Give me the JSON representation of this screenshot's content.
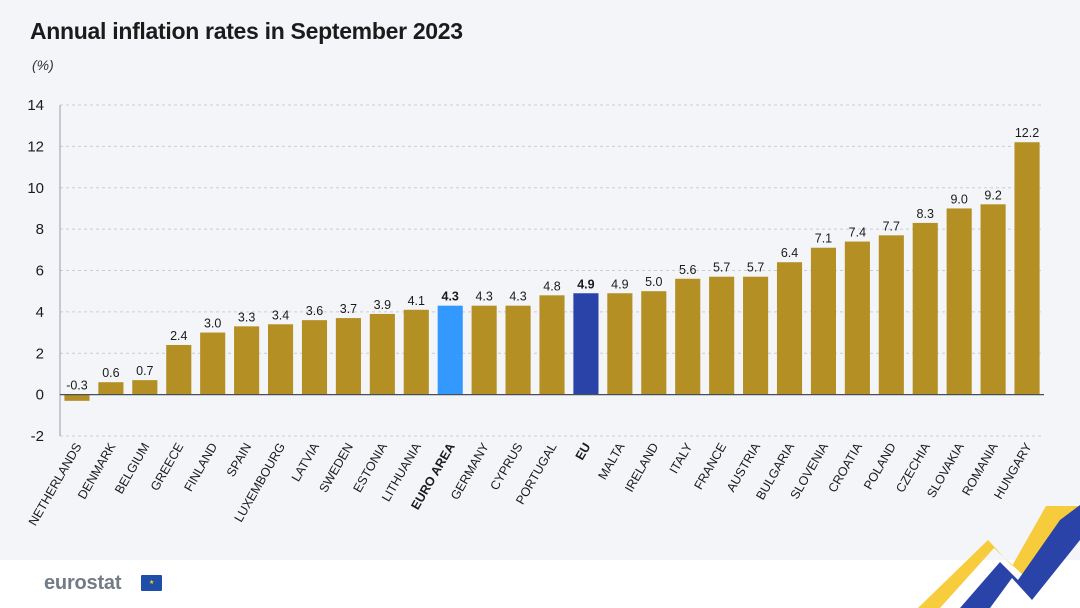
{
  "header": {
    "title": "Annual inflation rates in September 2023",
    "unit": "(%)"
  },
  "footer": {
    "logo_text": "eurostat",
    "flag_stars": "★"
  },
  "colors": {
    "default": "#b38f24",
    "euro_area": "#3399ff",
    "eu": "#2a43a8",
    "grid": "#c9ced6",
    "text": "#1b1b1b"
  },
  "chart_data": {
    "type": "bar",
    "title": "Annual inflation rates in September 2023",
    "ylabel": "(%)",
    "xlabel": "",
    "ylim": [
      -2,
      14
    ],
    "yticks": [
      -2,
      0,
      2,
      4,
      6,
      8,
      10,
      12,
      14
    ],
    "grid": true,
    "categories": [
      "NETHERLANDS",
      "DENMARK",
      "BELGIUM",
      "GREECE",
      "FINLAND",
      "SPAIN",
      "LUXEMBOURG",
      "LATVIA",
      "SWEDEN",
      "ESTONIA",
      "LITHUANIA",
      "EURO AREA",
      "GERMANY",
      "CYPRUS",
      "PORTUGAL",
      "EU",
      "MALTA",
      "IRELAND",
      "ITALY",
      "FRANCE",
      "AUSTRIA",
      "BULGARIA",
      "SLOVENIA",
      "CROATIA",
      "POLAND",
      "CZECHIA",
      "SLOVAKIA",
      "ROMANIA",
      "HUNGARY"
    ],
    "values": [
      -0.3,
      0.6,
      0.7,
      2.4,
      3.0,
      3.3,
      3.4,
      3.6,
      3.7,
      3.9,
      4.1,
      4.3,
      4.3,
      4.3,
      4.8,
      4.9,
      4.9,
      5.0,
      5.6,
      5.7,
      5.7,
      6.4,
      7.1,
      7.4,
      7.7,
      8.3,
      9.0,
      9.2,
      12.2
    ],
    "value_labels": [
      "-0.3",
      "0.6",
      "0.7",
      "2.4",
      "3.0",
      "3.3",
      "3.4",
      "3.6",
      "3.7",
      "3.9",
      "4.1",
      "4.3",
      "4.3",
      "4.3",
      "4.8",
      "4.9",
      "4.9",
      "5.0",
      "5.6",
      "5.7",
      "5.7",
      "6.4",
      "7.1",
      "7.4",
      "7.7",
      "8.3",
      "9.0",
      "9.2",
      "12.2"
    ],
    "highlight": {
      "EURO AREA": "euro_area",
      "EU": "eu"
    }
  }
}
